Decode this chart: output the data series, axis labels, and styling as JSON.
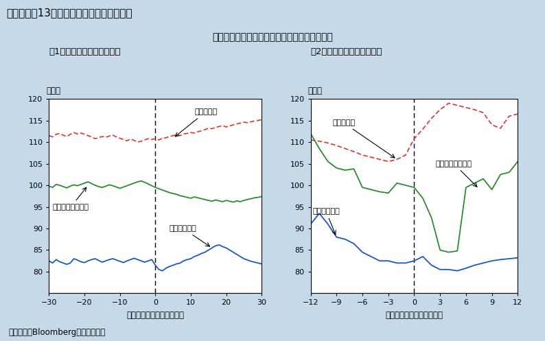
{
  "title_box": "第１－２－13図　災害発生前後の為替動向",
  "subtitle": "為替レートは一時的に円高に振れた後、安定化",
  "panel1_title": "（1）円ドルレート（日次）",
  "panel2_title": "（2）円ドルレート（月次）",
  "ylabel": "（円）",
  "xlabel1": "（災害発生からの経過日）",
  "xlabel2": "（災害発生からの経過月）",
  "footnote": "（備考）　Bloombergにより作成。",
  "katrina_label": "カトリーナ",
  "hanshin_label": "阪神・淡路大震災",
  "tohoku_label": "東日本大震災",
  "bg_color": "#c5d9e8",
  "plot_bg": "#ffffff",
  "title_bg": "#6fa8c8",
  "ylim": [
    75,
    120
  ],
  "yticks": [
    80,
    85,
    90,
    95,
    100,
    105,
    110,
    115,
    120
  ],
  "panel1": {
    "xlim": [
      -30,
      30
    ],
    "xticks": [
      -30,
      -20,
      -10,
      0,
      10,
      20,
      30
    ],
    "katrina_x": [
      -30,
      -29,
      -28,
      -27,
      -26,
      -25,
      -24,
      -23,
      -22,
      -21,
      -20,
      -19,
      -18,
      -17,
      -16,
      -15,
      -14,
      -13,
      -12,
      -11,
      -10,
      -9,
      -8,
      -7,
      -6,
      -5,
      -4,
      -3,
      -2,
      -1,
      0,
      1,
      2,
      3,
      4,
      5,
      6,
      7,
      8,
      9,
      10,
      11,
      12,
      13,
      14,
      15,
      16,
      17,
      18,
      19,
      20,
      21,
      22,
      23,
      24,
      25,
      26,
      27,
      28,
      29,
      30
    ],
    "katrina_y": [
      111.5,
      111.2,
      111.8,
      112.0,
      111.6,
      111.3,
      111.8,
      112.2,
      111.9,
      112.1,
      111.8,
      111.5,
      111.2,
      110.8,
      111.0,
      111.3,
      111.1,
      111.4,
      111.6,
      111.2,
      110.9,
      110.6,
      110.3,
      110.7,
      110.4,
      110.0,
      110.2,
      110.5,
      110.8,
      110.6,
      110.8,
      110.5,
      110.9,
      111.0,
      111.3,
      111.5,
      111.7,
      111.5,
      111.9,
      112.0,
      112.2,
      112.1,
      112.4,
      112.6,
      112.9,
      113.2,
      113.1,
      113.4,
      113.6,
      113.8,
      113.5,
      113.7,
      114.0,
      114.2,
      114.4,
      114.6,
      114.5,
      114.7,
      114.9,
      115.0,
      115.2
    ],
    "hanshin_x": [
      -30,
      -29,
      -28,
      -27,
      -26,
      -25,
      -24,
      -23,
      -22,
      -21,
      -20,
      -19,
      -18,
      -17,
      -16,
      -15,
      -14,
      -13,
      -12,
      -11,
      -10,
      -9,
      -8,
      -7,
      -6,
      -5,
      -4,
      -3,
      -2,
      -1,
      0,
      1,
      2,
      3,
      4,
      5,
      6,
      7,
      8,
      9,
      10,
      11,
      12,
      13,
      14,
      15,
      16,
      17,
      18,
      19,
      20,
      21,
      22,
      23,
      24,
      25,
      26,
      27,
      28,
      29,
      30
    ],
    "hanshin_y": [
      99.8,
      99.5,
      100.2,
      100.0,
      99.7,
      99.4,
      99.8,
      100.1,
      99.9,
      100.2,
      100.5,
      100.8,
      100.4,
      100.0,
      99.7,
      99.5,
      99.8,
      100.1,
      99.9,
      99.6,
      99.3,
      99.6,
      99.9,
      100.2,
      100.5,
      100.8,
      101.0,
      100.7,
      100.3,
      99.9,
      99.5,
      99.2,
      98.9,
      98.6,
      98.3,
      98.1,
      97.9,
      97.6,
      97.4,
      97.2,
      97.0,
      97.3,
      97.1,
      96.9,
      96.7,
      96.5,
      96.3,
      96.6,
      96.4,
      96.2,
      96.5,
      96.3,
      96.1,
      96.4,
      96.2,
      96.5,
      96.7,
      96.9,
      97.1,
      97.2,
      97.4
    ],
    "tohoku_x": [
      -30,
      -29,
      -28,
      -27,
      -26,
      -25,
      -24,
      -23,
      -22,
      -21,
      -20,
      -19,
      -18,
      -17,
      -16,
      -15,
      -14,
      -13,
      -12,
      -11,
      -10,
      -9,
      -8,
      -7,
      -6,
      -5,
      -4,
      -3,
      -2,
      -1,
      0,
      1,
      2,
      3,
      4,
      5,
      6,
      7,
      8,
      9,
      10,
      11,
      12,
      13,
      14,
      15,
      16,
      17,
      18,
      19,
      20,
      21,
      22,
      23,
      24,
      25,
      26,
      27,
      28,
      29,
      30
    ],
    "tohoku_y": [
      82.5,
      82.0,
      82.8,
      82.3,
      82.0,
      81.7,
      82.0,
      83.0,
      82.7,
      82.3,
      82.1,
      82.5,
      82.8,
      83.0,
      82.6,
      82.2,
      82.5,
      82.8,
      83.0,
      82.7,
      82.4,
      82.1,
      82.5,
      82.8,
      83.1,
      82.8,
      82.5,
      82.2,
      82.5,
      82.8,
      81.5,
      80.5,
      80.2,
      80.8,
      81.2,
      81.5,
      81.8,
      82.0,
      82.5,
      82.8,
      83.0,
      83.5,
      83.8,
      84.2,
      84.5,
      85.0,
      85.5,
      86.0,
      86.2,
      85.8,
      85.5,
      85.0,
      84.5,
      84.0,
      83.5,
      83.0,
      82.7,
      82.4,
      82.2,
      82.0,
      81.8
    ]
  },
  "panel2": {
    "xlim": [
      -12,
      12
    ],
    "xticks": [
      -12,
      -9,
      -6,
      -3,
      0,
      3,
      6,
      9,
      12
    ],
    "katrina_x": [
      -12,
      -11,
      -10,
      -9,
      -8,
      -7,
      -6,
      -5,
      -4,
      -3,
      -2,
      -1,
      0,
      1,
      2,
      3,
      4,
      5,
      6,
      7,
      8,
      9,
      10,
      11,
      12
    ],
    "katrina_y": [
      110.5,
      110.2,
      109.8,
      109.2,
      108.5,
      107.8,
      107.0,
      106.5,
      106.0,
      105.5,
      106.0,
      107.0,
      110.8,
      113.0,
      115.5,
      117.5,
      119.0,
      118.5,
      118.0,
      117.5,
      116.8,
      114.0,
      113.2,
      116.0,
      116.5
    ],
    "hanshin_x": [
      -12,
      -11,
      -10,
      -9,
      -8,
      -7,
      -6,
      -5,
      -4,
      -3,
      -2,
      -1,
      0,
      1,
      2,
      3,
      4,
      5,
      6,
      7,
      8,
      9,
      10,
      11,
      12
    ],
    "hanshin_y": [
      112.0,
      108.5,
      105.5,
      104.0,
      103.5,
      103.8,
      99.5,
      99.0,
      98.5,
      98.2,
      100.5,
      100.0,
      99.5,
      97.0,
      92.5,
      85.0,
      84.5,
      84.8,
      99.5,
      100.5,
      101.5,
      99.0,
      102.5,
      103.0,
      105.5
    ],
    "tohoku_x": [
      -12,
      -11,
      -10,
      -9,
      -8,
      -7,
      -6,
      -5,
      -4,
      -3,
      -2,
      -1,
      0,
      1,
      2,
      3,
      4,
      5,
      6,
      7,
      8,
      9,
      10,
      11,
      12
    ],
    "tohoku_y": [
      91.0,
      93.5,
      91.0,
      88.0,
      87.5,
      86.5,
      84.5,
      83.5,
      82.5,
      82.5,
      82.0,
      82.0,
      82.5,
      83.5,
      81.5,
      80.5,
      80.5,
      80.2,
      80.8,
      81.5,
      82.0,
      82.5,
      82.8,
      83.0,
      83.2
    ]
  },
  "colors": {
    "katrina": "#e03030",
    "hanshin": "#2d8a2d",
    "tohoku": "#1a56c4"
  }
}
